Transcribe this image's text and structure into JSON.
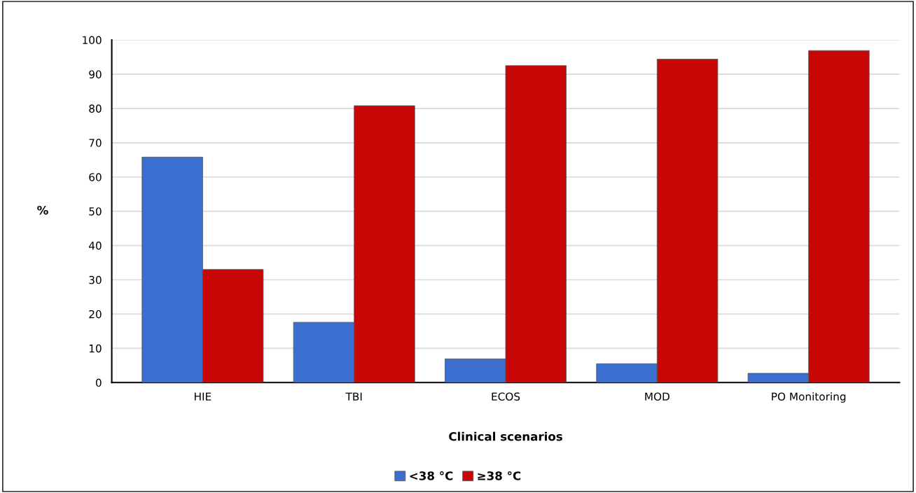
{
  "chart_data": {
    "type": "bar",
    "xlabel": "Clinical scenarios",
    "ylabel": "%",
    "categories": [
      "HIE",
      "TBI",
      "ECOS",
      "MOD",
      "PO Monitoring"
    ],
    "series": [
      {
        "name": "<38 °C",
        "color": "#3a6fcf",
        "values": [
          65.8,
          17.6,
          6.9,
          5.5,
          2.7
        ]
      },
      {
        "name": "≥38 °C",
        "color": "#c80606",
        "values": [
          33.0,
          80.8,
          92.5,
          94.4,
          96.9
        ]
      }
    ],
    "ylim": [
      0,
      100
    ],
    "yticks": [
      0,
      10,
      20,
      30,
      40,
      50,
      60,
      70,
      80,
      90,
      100
    ],
    "grid": "y",
    "legend": "bottom"
  }
}
